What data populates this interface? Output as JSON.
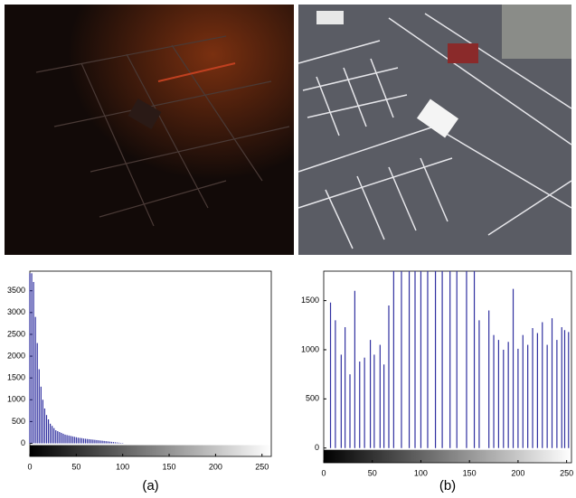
{
  "chart_data": [
    {
      "type": "bar",
      "caption": "(a)",
      "color": "#3030a0",
      "x": [
        0,
        2,
        4,
        6,
        8,
        10,
        12,
        14,
        16,
        18,
        20,
        22,
        24,
        26,
        28,
        30,
        32,
        34,
        36,
        38,
        40,
        42,
        44,
        46,
        48,
        50,
        52,
        54,
        56,
        58,
        60,
        62,
        64,
        66,
        68,
        70,
        72,
        74,
        76,
        78,
        80,
        82,
        84,
        86,
        88,
        90,
        92,
        94,
        96,
        98,
        100
      ],
      "values": [
        3900,
        3900,
        3700,
        2900,
        2300,
        1700,
        1300,
        1000,
        800,
        650,
        550,
        450,
        400,
        350,
        300,
        280,
        260,
        240,
        220,
        200,
        190,
        180,
        170,
        160,
        150,
        140,
        130,
        125,
        120,
        110,
        105,
        100,
        95,
        90,
        85,
        80,
        75,
        70,
        65,
        60,
        55,
        50,
        45,
        40,
        35,
        30,
        25,
        20,
        15,
        10,
        8
      ],
      "xlim": [
        0,
        260
      ],
      "xticks": [
        0,
        50,
        100,
        150,
        200,
        250
      ],
      "ylim": [
        -300,
        3950
      ],
      "yticks": [
        0,
        500,
        1000,
        1500,
        2000,
        2500,
        3000,
        3500
      ]
    },
    {
      "type": "bar",
      "caption": "(b)",
      "color": "#3030a0",
      "x": [
        7,
        12,
        18,
        22,
        27,
        32,
        37,
        42,
        48,
        52,
        58,
        62,
        67,
        72,
        80,
        88,
        94,
        100,
        107,
        115,
        122,
        130,
        137,
        147,
        155,
        160,
        170,
        175,
        180,
        185,
        190,
        195,
        200,
        205,
        210,
        215,
        220,
        225,
        230,
        235,
        240,
        245,
        248,
        252
      ],
      "values": [
        1480,
        1300,
        950,
        1230,
        750,
        1600,
        880,
        920,
        1100,
        950,
        1050,
        850,
        1450,
        1800,
        1800,
        1800,
        1800,
        1800,
        1800,
        1800,
        1800,
        1800,
        1800,
        1800,
        1800,
        1300,
        1400,
        1150,
        1100,
        1000,
        1080,
        1620,
        1010,
        1150,
        1050,
        1220,
        1170,
        1280,
        1050,
        1320,
        1100,
        1230,
        1200,
        1180
      ],
      "xlim": [
        0,
        255
      ],
      "xticks": [
        0,
        50,
        100,
        150,
        200,
        250
      ],
      "ylim": [
        -150,
        1800
      ],
      "yticks": [
        0,
        500,
        1000,
        1500
      ]
    }
  ]
}
